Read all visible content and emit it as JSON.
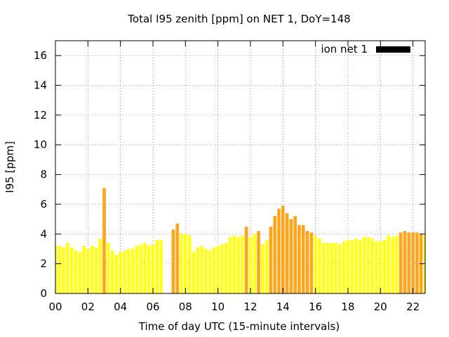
{
  "chart_data": {
    "type": "bar",
    "title": "Total I95 zenith [ppm] on NET 1, DoY=148",
    "xlabel": "Time of day UTC (15-minute intervals)",
    "ylabel": "I95 [ppm]",
    "xlim": [
      0,
      22.75
    ],
    "ylim": [
      0,
      17
    ],
    "x_ticks": [
      "00",
      "02",
      "04",
      "06",
      "08",
      "10",
      "12",
      "14",
      "16",
      "18",
      "20",
      "22"
    ],
    "y_ticks": [
      "0",
      "2",
      "4",
      "6",
      "8",
      "10",
      "12",
      "14",
      "16"
    ],
    "grid": true,
    "legend": {
      "label": "ion net 1",
      "color": "#000000",
      "placement": "top-right"
    },
    "colors": {
      "normal": "#ffff1a",
      "elevated": "#ffa51c"
    },
    "bar_width_hours": 0.2,
    "series": [
      {
        "times": [
          0.0,
          0.25,
          0.5,
          0.75,
          1.0,
          1.25,
          1.5,
          1.75,
          2.0,
          2.25,
          2.5,
          2.75,
          3.0,
          3.25,
          3.5,
          3.75,
          4.0,
          4.25,
          4.5,
          4.75,
          5.0,
          5.25,
          5.5,
          5.75,
          6.0,
          6.25,
          6.5,
          6.75,
          7.0,
          7.25,
          7.5,
          7.75,
          8.0,
          8.25,
          8.5,
          8.75,
          9.0,
          9.25,
          9.5,
          9.75,
          10.0,
          10.25,
          10.5,
          10.75,
          11.0,
          11.25,
          11.5,
          11.75,
          12.0,
          12.25,
          12.5,
          12.75,
          13.0,
          13.25,
          13.5,
          13.75,
          14.0,
          14.25,
          14.5,
          14.75,
          15.0,
          15.25,
          15.5,
          15.75,
          16.0,
          16.25,
          16.5,
          16.75,
          17.0,
          17.25,
          17.5,
          17.75,
          18.0,
          18.25,
          18.5,
          18.75,
          19.0,
          19.25,
          19.5,
          19.75,
          20.0,
          20.25,
          20.5,
          20.75,
          21.0,
          21.25,
          21.5,
          21.75,
          22.0,
          22.25,
          22.5,
          22.75
        ],
        "values": [
          3.2,
          3.2,
          3.1,
          3.4,
          3.1,
          2.9,
          2.8,
          3.2,
          3.0,
          3.2,
          3.1,
          3.7,
          7.1,
          3.4,
          2.9,
          2.6,
          2.8,
          2.9,
          3.0,
          3.0,
          3.2,
          3.3,
          3.4,
          3.2,
          3.3,
          3.6,
          3.6,
          0,
          0,
          4.3,
          4.7,
          4.0,
          4.0,
          3.9,
          2.8,
          3.1,
          3.2,
          3.0,
          2.9,
          3.1,
          3.2,
          3.3,
          3.4,
          3.8,
          3.9,
          3.8,
          3.9,
          4.5,
          3.8,
          4.0,
          4.2,
          3.3,
          3.6,
          4.5,
          5.2,
          5.7,
          5.9,
          5.4,
          5.0,
          5.2,
          4.6,
          4.6,
          4.2,
          4.1,
          3.9,
          3.7,
          3.4,
          3.4,
          3.4,
          3.4,
          3.3,
          3.5,
          3.6,
          3.6,
          3.7,
          3.6,
          3.8,
          3.8,
          3.7,
          3.5,
          3.5,
          3.6,
          3.9,
          3.8,
          3.9,
          4.1,
          4.2,
          4.1,
          4.1,
          4.1,
          4.0,
          3.9
        ],
        "levels": [
          "normal",
          "normal",
          "normal",
          "normal",
          "normal",
          "normal",
          "normal",
          "normal",
          "normal",
          "normal",
          "normal",
          "normal",
          "elevated",
          "normal",
          "normal",
          "normal",
          "normal",
          "normal",
          "normal",
          "normal",
          "normal",
          "normal",
          "normal",
          "normal",
          "normal",
          "normal",
          "normal",
          "normal",
          "normal",
          "elevated",
          "elevated",
          "normal",
          "normal",
          "normal",
          "normal",
          "normal",
          "normal",
          "normal",
          "normal",
          "normal",
          "normal",
          "normal",
          "normal",
          "normal",
          "normal",
          "normal",
          "normal",
          "elevated",
          "normal",
          "normal",
          "elevated",
          "normal",
          "normal",
          "elevated",
          "elevated",
          "elevated",
          "elevated",
          "elevated",
          "elevated",
          "elevated",
          "elevated",
          "elevated",
          "elevated",
          "elevated",
          "normal",
          "normal",
          "normal",
          "normal",
          "normal",
          "normal",
          "normal",
          "normal",
          "normal",
          "normal",
          "normal",
          "normal",
          "normal",
          "normal",
          "normal",
          "normal",
          "normal",
          "normal",
          "normal",
          "normal",
          "normal",
          "elevated",
          "elevated",
          "elevated",
          "elevated",
          "elevated",
          "elevated",
          "normal"
        ]
      }
    ]
  }
}
